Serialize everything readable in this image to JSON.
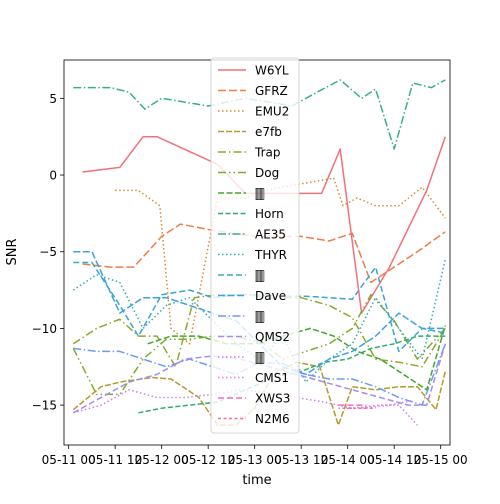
{
  "chart_data": {
    "type": "line",
    "xlabel": "time",
    "ylabel": "SNR",
    "xticks": [
      {
        "t": 0.0,
        "label": "05-11 00"
      },
      {
        "t": 0.5,
        "label": "05-11 12"
      },
      {
        "t": 1.0,
        "label": "05-12 00"
      },
      {
        "t": 1.5,
        "label": "05-12 12"
      },
      {
        "t": 2.0,
        "label": "05-13 00"
      },
      {
        "t": 2.5,
        "label": "05-13 12"
      },
      {
        "t": 3.0,
        "label": "05-14 00"
      },
      {
        "t": 3.5,
        "label": "05-14 12"
      },
      {
        "t": 4.0,
        "label": "05-15 00"
      }
    ],
    "yticks": [
      -15,
      -10,
      -5,
      0,
      5
    ],
    "xlim": [
      -0.05,
      4.1
    ],
    "ylim": [
      -17.6,
      7.5
    ],
    "legend_position": "top-center",
    "series": [
      {
        "name": "W6YL",
        "color": "#f0717d",
        "dash": "solid",
        "points": [
          [
            0.15,
            0.2
          ],
          [
            0.55,
            0.5
          ],
          [
            0.8,
            2.5
          ],
          [
            0.95,
            2.5
          ],
          [
            1.6,
            0.7
          ],
          [
            1.9,
            -1.2
          ],
          [
            2.5,
            -1.2
          ],
          [
            2.72,
            -1.2
          ],
          [
            2.92,
            1.7
          ],
          [
            3.15,
            -9.0
          ],
          [
            3.45,
            -6.0
          ],
          [
            3.85,
            -1.0
          ],
          [
            4.05,
            2.5
          ]
        ]
      },
      {
        "name": "GFRZ",
        "color": "#f07c48",
        "dash": "8,3",
        "points": [
          [
            0.15,
            -5.8
          ],
          [
            0.45,
            -6.0
          ],
          [
            0.7,
            -6.0
          ],
          [
            1.0,
            -4.0
          ],
          [
            1.2,
            -3.2
          ],
          [
            1.55,
            -3.6
          ],
          [
            2.0,
            -4.0
          ],
          [
            2.5,
            -4.0
          ],
          [
            2.8,
            -4.3
          ],
          [
            3.05,
            -3.8
          ],
          [
            3.25,
            -7.0
          ],
          [
            3.5,
            -6.0
          ],
          [
            3.75,
            -5.0
          ],
          [
            4.05,
            -3.7
          ]
        ]
      },
      {
        "name": "EMU2",
        "color": "#d58e30",
        "dash": "1.5,2.5",
        "points": [
          [
            0.5,
            -1.0
          ],
          [
            0.75,
            -1.0
          ],
          [
            0.98,
            -2.0
          ],
          [
            1.1,
            -10.0
          ],
          [
            1.3,
            -11.0
          ],
          [
            1.6,
            -1.5
          ],
          [
            1.9,
            -1.5
          ],
          [
            2.1,
            -1.0
          ],
          [
            2.85,
            -0.2
          ],
          [
            2.95,
            -2.0
          ],
          [
            3.1,
            -1.5
          ],
          [
            3.3,
            -2.0
          ],
          [
            3.55,
            -2.0
          ],
          [
            3.8,
            -0.8
          ],
          [
            4.05,
            -2.8
          ]
        ]
      },
      {
        "name": "e7fb",
        "color": "#b49a2c",
        "dash": "6,2",
        "points": [
          [
            0.05,
            -15.3
          ],
          [
            0.35,
            -13.8
          ],
          [
            0.55,
            -13.5
          ],
          [
            0.9,
            -13.2
          ],
          [
            1.1,
            -13.3
          ],
          [
            1.4,
            -14.5
          ],
          [
            1.6,
            -16.3
          ],
          [
            1.8,
            -16.3
          ],
          [
            2.0,
            -15.2
          ],
          [
            2.2,
            -13.0
          ],
          [
            2.45,
            -12.2
          ],
          [
            2.7,
            -12.5
          ],
          [
            2.9,
            -16.3
          ],
          [
            3.05,
            -13.8
          ],
          [
            3.3,
            -14.0
          ],
          [
            3.55,
            -13.8
          ],
          [
            3.75,
            -13.8
          ],
          [
            3.95,
            -15.3
          ],
          [
            4.05,
            -12.8
          ]
        ]
      },
      {
        "name": "Trap",
        "color": "#93a42c",
        "dash": "8,3,1.5,3",
        "points": [
          [
            0.05,
            -11.0
          ],
          [
            0.3,
            -10.0
          ],
          [
            0.55,
            -9.4
          ],
          [
            0.75,
            -10.5
          ],
          [
            0.95,
            -10.5
          ],
          [
            1.15,
            -12.5
          ],
          [
            1.35,
            -8.0
          ],
          [
            1.6,
            -7.8
          ],
          [
            1.9,
            -7.8
          ],
          [
            2.2,
            -8.0
          ],
          [
            2.5,
            -8.0
          ],
          [
            2.8,
            -8.5
          ],
          [
            3.05,
            -9.3
          ],
          [
            3.3,
            -12.0
          ],
          [
            3.55,
            -12.2
          ],
          [
            3.8,
            -12.5
          ],
          [
            4.05,
            -10.0
          ]
        ]
      },
      {
        "name": "Dog",
        "color": "#7eab2b",
        "dash": "8,3,1.5,3,1.5,3",
        "points": [
          [
            0.05,
            -11.3
          ],
          [
            0.3,
            -14.3
          ],
          [
            0.55,
            -14.3
          ],
          [
            0.8,
            -12.0
          ],
          [
            1.05,
            -10.7
          ],
          [
            1.3,
            -10.7
          ],
          [
            1.55,
            -10.5
          ],
          [
            1.8,
            -10.5
          ],
          [
            2.1,
            -11.0
          ],
          [
            2.3,
            -12.0
          ],
          [
            2.55,
            -11.5
          ],
          [
            2.8,
            -11.0
          ],
          [
            3.05,
            -10.0
          ],
          [
            3.25,
            -7.8
          ],
          [
            3.5,
            -9.5
          ],
          [
            3.75,
            -12.0
          ],
          [
            4.05,
            -10.0
          ]
        ]
      },
      {
        "name": "🀫",
        "color": "#40a72d",
        "dash": "6,2.5",
        "points": [
          [
            0.85,
            -11.0
          ],
          [
            1.1,
            -10.5
          ],
          [
            1.4,
            -10.5
          ],
          [
            1.7,
            -11.0
          ],
          [
            2.0,
            -11.0
          ],
          [
            2.3,
            -10.5
          ],
          [
            2.6,
            -10.0
          ],
          [
            2.85,
            -10.5
          ],
          [
            3.1,
            -11.5
          ],
          [
            3.35,
            -12.0
          ],
          [
            3.6,
            -13.0
          ],
          [
            3.85,
            -14.0
          ],
          [
            4.05,
            -9.8
          ]
        ]
      },
      {
        "name": "Horn",
        "color": "#31ad6c",
        "dash": "5,2.5",
        "points": [
          [
            0.75,
            -15.5
          ],
          [
            1.0,
            -15.2
          ],
          [
            1.3,
            -15.0
          ],
          [
            1.6,
            -14.8
          ],
          [
            1.9,
            -14.0
          ],
          [
            2.2,
            -13.2
          ],
          [
            2.5,
            -12.8
          ],
          [
            2.75,
            -12.2
          ],
          [
            3.0,
            -12.0
          ],
          [
            3.25,
            -11.3
          ],
          [
            3.5,
            -11.0
          ],
          [
            3.75,
            -10.5
          ],
          [
            4.05,
            -10.5
          ]
        ]
      },
      {
        "name": "AE35",
        "color": "#35ad93",
        "dash": "8,2.5,1.5,2.5",
        "points": [
          [
            0.05,
            5.7
          ],
          [
            0.45,
            5.7
          ],
          [
            0.65,
            5.4
          ],
          [
            0.82,
            4.3
          ],
          [
            1.0,
            5.0
          ],
          [
            1.5,
            4.5
          ],
          [
            1.9,
            5.0
          ],
          [
            2.4,
            4.5
          ],
          [
            2.7,
            5.5
          ],
          [
            2.92,
            6.2
          ],
          [
            3.15,
            5.0
          ],
          [
            3.3,
            5.6
          ],
          [
            3.5,
            1.7
          ],
          [
            3.7,
            6.0
          ],
          [
            3.9,
            5.7
          ],
          [
            4.05,
            6.2
          ]
        ]
      },
      {
        "name": "THYR",
        "color": "#37aab2",
        "dash": "1.5,2.5",
        "points": [
          [
            0.05,
            -7.5
          ],
          [
            0.3,
            -6.5
          ],
          [
            0.55,
            -7.0
          ],
          [
            0.8,
            -10.0
          ],
          [
            1.05,
            -8.5
          ],
          [
            1.3,
            -8.0
          ],
          [
            1.55,
            -9.5
          ],
          [
            1.8,
            -11.0
          ],
          [
            2.05,
            -12.0
          ],
          [
            2.3,
            -10.5
          ],
          [
            2.55,
            -13.5
          ],
          [
            2.8,
            -12.0
          ],
          [
            3.05,
            -11.0
          ],
          [
            3.3,
            -8.0
          ],
          [
            3.55,
            -10.0
          ],
          [
            3.8,
            -12.0
          ],
          [
            4.05,
            -5.5
          ]
        ]
      },
      {
        "name": "🀫",
        "color": "#38a7c9",
        "dash": "6,3",
        "points": [
          [
            0.05,
            -5.7
          ],
          [
            0.25,
            -5.7
          ],
          [
            0.55,
            -8.5
          ],
          [
            0.75,
            -10.5
          ],
          [
            1.0,
            -7.8
          ],
          [
            1.3,
            -7.5
          ],
          [
            1.55,
            -8.0
          ],
          [
            1.8,
            -7.8
          ],
          [
            2.05,
            -7.8
          ],
          [
            2.3,
            -7.9
          ],
          [
            2.55,
            -7.9
          ],
          [
            2.8,
            -8.0
          ],
          [
            3.05,
            -8.1
          ],
          [
            3.3,
            -6.0
          ],
          [
            3.55,
            -11.5
          ],
          [
            3.8,
            -10.0
          ],
          [
            4.05,
            -10.3
          ]
        ]
      },
      {
        "name": "Dave",
        "color": "#3ba1df",
        "dash": "7,2.5",
        "points": [
          [
            0.05,
            -5.0
          ],
          [
            0.25,
            -5.0
          ],
          [
            0.55,
            -9.0
          ],
          [
            0.8,
            -8.0
          ],
          [
            1.05,
            -8.0
          ],
          [
            1.3,
            -8.5
          ],
          [
            1.55,
            -9.0
          ],
          [
            1.8,
            -9.5
          ],
          [
            2.05,
            -11.0
          ],
          [
            2.3,
            -12.5
          ],
          [
            2.55,
            -13.0
          ],
          [
            2.8,
            -12.0
          ],
          [
            3.05,
            -11.5
          ],
          [
            3.3,
            -10.5
          ],
          [
            3.55,
            -9.0
          ],
          [
            3.8,
            -10.0
          ],
          [
            4.05,
            -10.0
          ]
        ]
      },
      {
        "name": "🀫",
        "color": "#6c9bf0",
        "dash": "8,2.5,1.5,2.5",
        "points": [
          [
            0.05,
            -11.3
          ],
          [
            0.3,
            -11.5
          ],
          [
            0.55,
            -11.5
          ],
          [
            0.8,
            -12.0
          ],
          [
            1.05,
            -12.5
          ],
          [
            1.3,
            -12.0
          ],
          [
            1.55,
            -12.5
          ],
          [
            1.8,
            -13.0
          ],
          [
            2.05,
            -12.2
          ],
          [
            2.3,
            -12.3
          ],
          [
            2.55,
            -13.0
          ],
          [
            2.8,
            -13.3
          ],
          [
            3.05,
            -13.3
          ],
          [
            3.3,
            -13.8
          ],
          [
            3.55,
            -14.5
          ],
          [
            3.8,
            -15.0
          ],
          [
            4.05,
            -11.0
          ]
        ]
      },
      {
        "name": "QMS2",
        "color": "#a78bf2",
        "dash": "6,3",
        "points": [
          [
            0.05,
            -15.5
          ],
          [
            0.35,
            -14.5
          ],
          [
            0.65,
            -13.5
          ],
          [
            0.95,
            -13.0
          ],
          [
            1.25,
            -12.0
          ],
          [
            1.55,
            -11.8
          ],
          [
            1.85,
            -12.0
          ],
          [
            2.15,
            -12.5
          ],
          [
            2.45,
            -13.0
          ],
          [
            2.75,
            -13.5
          ],
          [
            3.05,
            -14.0
          ],
          [
            3.35,
            -14.5
          ],
          [
            3.65,
            -15.0
          ],
          [
            3.85,
            -15.0
          ],
          [
            4.05,
            -11.0
          ]
        ]
      },
      {
        "name": "🀫",
        "color": "#c97eeb",
        "dash": "1.5,2.5",
        "points": [
          [
            0.05,
            -15.5
          ],
          [
            0.35,
            -15.0
          ],
          [
            0.65,
            -14.0
          ],
          [
            0.95,
            -14.5
          ],
          [
            1.25,
            -14.5
          ],
          [
            1.55,
            -14.3
          ],
          [
            1.85,
            -14.0
          ],
          [
            2.15,
            -14.2
          ],
          [
            2.45,
            -14.5
          ],
          [
            2.75,
            -14.8
          ],
          [
            3.05,
            -15.2
          ],
          [
            3.35,
            -15.0
          ],
          [
            3.55,
            -15.0
          ],
          [
            3.75,
            -16.3
          ]
        ]
      },
      {
        "name": "CMS1",
        "color": "#e27ae0",
        "dash": "1.5,2.5",
        "points": [
          [
            2.9,
            -15.2
          ],
          [
            3.15,
            -15.2
          ],
          [
            3.45,
            -15.0
          ],
          [
            3.7,
            -14.7
          ]
        ]
      },
      {
        "name": "XWS3",
        "color": "#ef6fc5",
        "dash": "6,3",
        "points": [
          [
            2.9,
            -15.0
          ],
          [
            3.2,
            -15.0
          ]
        ]
      },
      {
        "name": "N2M6",
        "color": "#f46fa6",
        "dash": "3,2.5",
        "points": [
          [
            3.0,
            -15.2
          ],
          [
            3.3,
            -15.2
          ]
        ]
      }
    ]
  }
}
